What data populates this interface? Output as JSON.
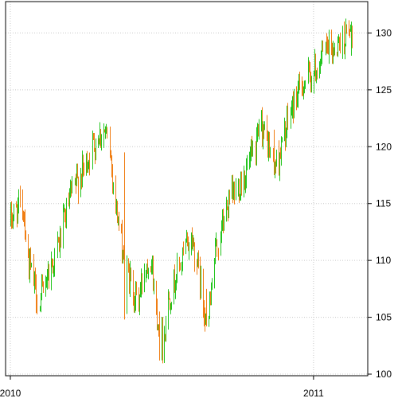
{
  "chart_data": {
    "type": "ohlc",
    "title": "",
    "xlabel": "",
    "ylabel": "",
    "x_range": [
      "2010-01-04",
      "2011-02-18"
    ],
    "ylim": [
      100,
      131.5
    ],
    "grid": true,
    "y_axis_position": "right",
    "y_ticks": [
      100,
      105,
      110,
      115,
      120,
      125,
      130
    ],
    "y_tick_labels": [
      "100",
      "105",
      "110",
      "115",
      "120",
      "125",
      "130"
    ],
    "x_ticks": [
      "2010-01-04",
      "2011-01-03"
    ],
    "x_tick_labels": [
      "2010",
      "2011"
    ],
    "colors": {
      "up": "#22c51d",
      "down": "#f07d12",
      "grid": "#c8c8c8",
      "frame": "#000000",
      "background": "#ffffff"
    },
    "trend_points": [
      [
        "2010-01-04",
        113.5
      ],
      [
        "2010-01-11",
        114.5
      ],
      [
        "2010-01-19",
        114.8
      ],
      [
        "2010-01-25",
        110.0
      ],
      [
        "2010-02-01",
        108.0
      ],
      [
        "2010-02-08",
        106.0
      ],
      [
        "2010-02-15",
        108.5
      ],
      [
        "2010-02-22",
        109.5
      ],
      [
        "2010-03-01",
        111.0
      ],
      [
        "2010-03-08",
        113.0
      ],
      [
        "2010-03-15",
        115.0
      ],
      [
        "2010-03-22",
        116.5
      ],
      [
        "2010-03-29",
        117.5
      ],
      [
        "2010-04-05",
        118.5
      ],
      [
        "2010-04-12",
        120.0
      ],
      [
        "2010-04-19",
        121.0
      ],
      [
        "2010-04-26",
        121.5
      ],
      [
        "2010-05-03",
        119.5
      ],
      [
        "2010-05-10",
        115.0
      ],
      [
        "2010-05-17",
        111.5
      ],
      [
        "2010-05-24",
        109.0
      ],
      [
        "2010-06-01",
        107.0
      ],
      [
        "2010-06-07",
        106.5
      ],
      [
        "2010-06-14",
        109.5
      ],
      [
        "2010-06-21",
        110.5
      ],
      [
        "2010-06-28",
        105.5
      ],
      [
        "2010-07-06",
        103.0
      ],
      [
        "2010-07-12",
        106.5
      ],
      [
        "2010-07-19",
        108.0
      ],
      [
        "2010-07-26",
        109.5
      ],
      [
        "2010-08-02",
        111.0
      ],
      [
        "2010-08-09",
        112.0
      ],
      [
        "2010-08-16",
        110.0
      ],
      [
        "2010-08-23",
        106.0
      ],
      [
        "2010-08-30",
        105.0
      ],
      [
        "2010-09-07",
        110.5
      ],
      [
        "2010-09-13",
        112.5
      ],
      [
        "2010-09-20",
        114.5
      ],
      [
        "2010-09-27",
        115.5
      ],
      [
        "2010-10-04",
        116.5
      ],
      [
        "2010-10-11",
        117.5
      ],
      [
        "2010-10-18",
        118.5
      ],
      [
        "2010-10-25",
        119.5
      ],
      [
        "2010-11-01",
        122.0
      ],
      [
        "2010-11-08",
        120.5
      ],
      [
        "2010-11-15",
        118.5
      ],
      [
        "2010-11-22",
        119.0
      ],
      [
        "2010-11-29",
        121.0
      ],
      [
        "2010-12-06",
        123.0
      ],
      [
        "2010-12-13",
        124.5
      ],
      [
        "2010-12-20",
        125.5
      ],
      [
        "2010-12-27",
        126.0
      ],
      [
        "2011-01-03",
        126.5
      ],
      [
        "2011-01-10",
        127.5
      ],
      [
        "2011-01-18",
        128.5
      ],
      [
        "2011-01-24",
        128.5
      ],
      [
        "2011-01-31",
        129.0
      ],
      [
        "2011-02-07",
        129.5
      ],
      [
        "2011-02-14",
        130.0
      ],
      [
        "2011-02-18",
        130.0
      ]
    ],
    "anchored_bars": [
      {
        "date": "2010-05-21",
        "open": 119.0,
        "high": 119.5,
        "low": 104.8,
        "close": 105.5
      },
      {
        "date": "2010-07-02",
        "open": 104.5,
        "high": 105.5,
        "low": 101.2,
        "close": 102.0
      },
      {
        "date": "2010-08-27",
        "open": 106.8,
        "high": 107.5,
        "low": 104.2,
        "close": 104.8
      },
      {
        "date": "2010-11-16",
        "open": 120.5,
        "high": 121.5,
        "low": 117.5,
        "close": 118.0
      },
      {
        "date": "2011-02-17",
        "open": 129.5,
        "high": 131.0,
        "low": 128.0,
        "close": 130.5
      }
    ]
  }
}
